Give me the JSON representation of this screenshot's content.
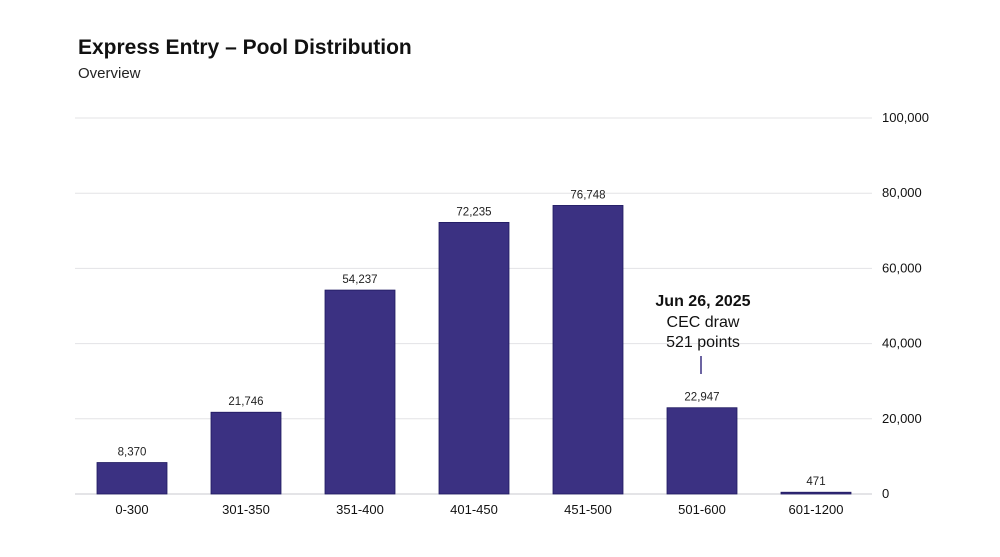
{
  "chart_data": {
    "type": "bar",
    "title": "Express Entry – Pool Distribution",
    "subtitle": "Overview",
    "categories": [
      "0-300",
      "301-350",
      "351-400",
      "401-450",
      "451-500",
      "501-600",
      "601-1200"
    ],
    "values": [
      8370,
      21746,
      54237,
      72235,
      76748,
      22947,
      471
    ],
    "value_labels": [
      "8,370",
      "21,746",
      "54,237",
      "72,235",
      "76,748",
      "22,947",
      "471"
    ],
    "ylim": [
      0,
      100000
    ],
    "yticks": [
      0,
      20000,
      40000,
      60000,
      80000,
      100000
    ],
    "ytick_labels": [
      "0",
      "20,000",
      "40,000",
      "60,000",
      "80,000",
      "100,000"
    ],
    "y_axis_side": "right",
    "grid": true,
    "bar_color": "#3b3182",
    "annotation": {
      "category": "501-600",
      "title": "Jun 26, 2025",
      "line1": "CEC draw",
      "line2": "521 points"
    }
  }
}
